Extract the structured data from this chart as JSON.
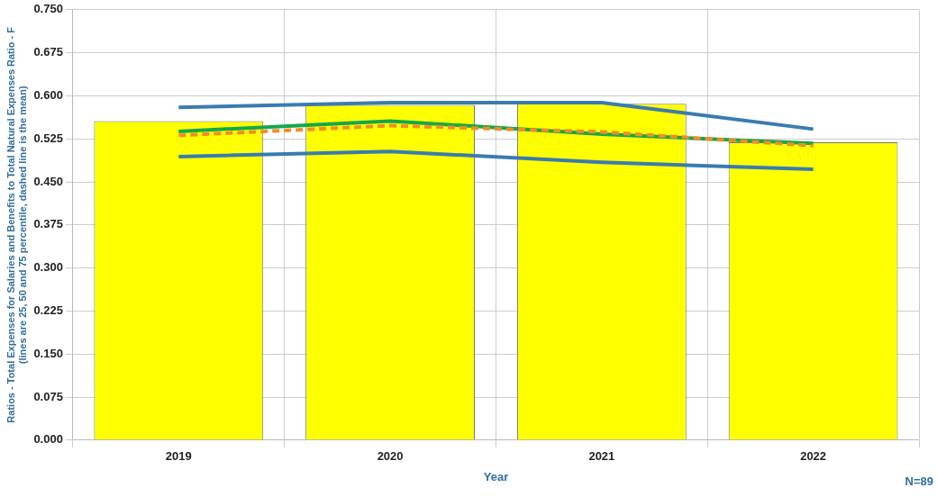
{
  "chart_data": {
    "type": "bar",
    "xlabel": "Year",
    "ylabel": "Ratios - Total Expenses for Salaries and Benefits to Total Natural Expenses Ratio - F\n(lines are 25, 50 and 75 percentile, dashed line is the mean)",
    "categories": [
      "2019",
      "2020",
      "2021",
      "2022"
    ],
    "series": [
      {
        "color": "#ffff00",
        "values": [
          0.556,
          0.584,
          0.586,
          0.519
        ]
      },
      {
        "type": "line",
        "color": "#3a7bb0",
        "values": [
          0.58,
          0.588,
          0.588,
          0.542
        ]
      },
      {
        "type": "line",
        "color": "#f28c28",
        "line_style": "dashed",
        "values": [
          0.531,
          0.548,
          0.537,
          0.513
        ]
      },
      {
        "type": "line",
        "color": "#14a84c",
        "values": [
          0.538,
          0.556,
          0.533,
          0.517
        ]
      },
      {
        "type": "line",
        "color": "#3a7bb0",
        "values": [
          0.494,
          0.503,
          0.484,
          0.472
        ]
      }
    ],
    "ylim": [
      0,
      0.75
    ],
    "yticks": [
      {
        "value": 0,
        "label": "0.000"
      },
      0.075,
      {
        "value": 0.15,
        "label": "0.150"
      },
      0.225,
      {
        "value": 0.3,
        "label": "0.300"
      },
      0.375,
      {
        "value": 0.45,
        "label": "0.450"
      },
      0.525,
      {
        "value": 0.6,
        "label": "0.600"
      },
      0.675,
      {
        "value": 0.75,
        "label": "0.750"
      }
    ],
    "grid": true,
    "legend": false,
    "marker": "none",
    "annotations": [
      "N=89"
    ]
  }
}
